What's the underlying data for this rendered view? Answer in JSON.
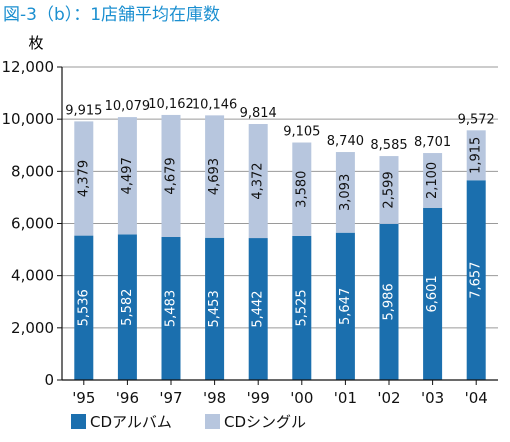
{
  "chart_data": {
    "type": "bar",
    "stacked": true,
    "title": "図-3（b）：1店舗平均在庫数",
    "unit_label": "枚",
    "categories": [
      "'95",
      "'96",
      "'97",
      "'98",
      "'99",
      "'00",
      "'01",
      "'02",
      "'03",
      "'04"
    ],
    "series": [
      {
        "name": "CDアルバム",
        "values": [
          5536,
          5582,
          5483,
          5453,
          5442,
          5525,
          5647,
          5986,
          6601,
          7657
        ],
        "labels": [
          "5,536",
          "5,582",
          "5,483",
          "5,453",
          "5,442",
          "5,525",
          "5,647",
          "5,986",
          "6,601",
          "7,657"
        ],
        "color": "#1b6fae"
      },
      {
        "name": "CDシングル",
        "values": [
          4379,
          4497,
          4679,
          4693,
          4372,
          3580,
          3093,
          2599,
          2100,
          1915
        ],
        "labels": [
          "4,379",
          "4,497",
          "4,679",
          "4,693",
          "4,372",
          "3,580",
          "3,093",
          "2,599",
          "2,100",
          "1,915"
        ],
        "color": "#b7c6de"
      }
    ],
    "totals": [
      9915,
      10079,
      10162,
      10146,
      9814,
      9105,
      8740,
      8585,
      8701,
      9572
    ],
    "total_labels": [
      "9,915",
      "10,079",
      "10,162",
      "10,146",
      "9,814",
      "9,105",
      "8,740",
      "8,585",
      "8,701",
      "9,572"
    ],
    "ylim": [
      0,
      12000
    ],
    "yticks": [
      0,
      2000,
      4000,
      6000,
      8000,
      10000,
      12000
    ],
    "ytick_labels": [
      "0",
      "2,000",
      "4,000",
      "6,000",
      "8,000",
      "10,000",
      "12,000"
    ],
    "grid": true,
    "legend_position": "bottom-left"
  },
  "colors": {
    "title": "#1b8fd0",
    "grid": "#9a9a9a",
    "axis": "#111111",
    "plot_bg": "#ffffff"
  }
}
